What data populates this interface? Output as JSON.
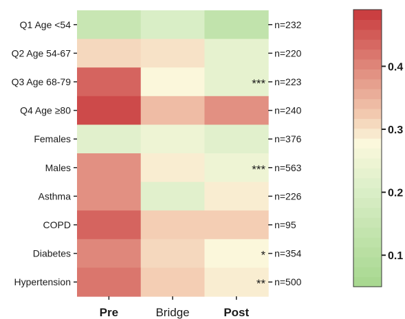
{
  "chart_data": {
    "type": "heatmap",
    "x_categories": [
      "Pre",
      "Bridge",
      "Post"
    ],
    "x_bold": [
      true,
      false,
      true
    ],
    "y_categories": [
      "Q1 Age <54",
      "Q2 Age 54-67",
      "Q3 Age 68-79",
      "Q4 Age ≥80",
      "Females",
      "Males",
      "Asthma",
      "COPD",
      "Diabetes",
      "Hypertension"
    ],
    "n_labels": [
      "n=232",
      "n=220",
      "n=223",
      "n=240",
      "n=376",
      "n=563",
      "n=226",
      "n=95",
      "n=354",
      "n=500"
    ],
    "values": [
      [
        0.15,
        0.2,
        0.13
      ],
      [
        0.31,
        0.3,
        0.23
      ],
      [
        0.44,
        0.28,
        0.23
      ],
      [
        0.47,
        0.34,
        0.39
      ],
      [
        0.22,
        0.25,
        0.22
      ],
      [
        0.39,
        0.29,
        0.25
      ],
      [
        0.39,
        0.22,
        0.29
      ],
      [
        0.44,
        0.32,
        0.32
      ],
      [
        0.4,
        0.31,
        0.28
      ],
      [
        0.42,
        0.32,
        0.29
      ]
    ],
    "significance": [
      [
        "",
        "",
        ""
      ],
      [
        "",
        "",
        ""
      ],
      [
        "",
        "",
        "***"
      ],
      [
        "",
        "",
        ""
      ],
      [
        "",
        "",
        ""
      ],
      [
        "",
        "",
        "***"
      ],
      [
        "",
        "",
        ""
      ],
      [
        "",
        "",
        ""
      ],
      [
        "",
        "",
        "*"
      ],
      [
        "",
        "",
        "**"
      ]
    ],
    "colorbar": {
      "min": 0.05,
      "max": 0.49,
      "ticks": [
        0.1,
        0.2,
        0.3,
        0.4
      ],
      "tick_labels": [
        "0.1",
        "0.2",
        "0.3",
        "0.4"
      ],
      "colors": {
        "low": "#a6d78e",
        "lowmid": "#dcefc9",
        "mid": "#fbf8dc",
        "highmid": "#f3cbb1",
        "high": "#c8383c"
      }
    }
  }
}
